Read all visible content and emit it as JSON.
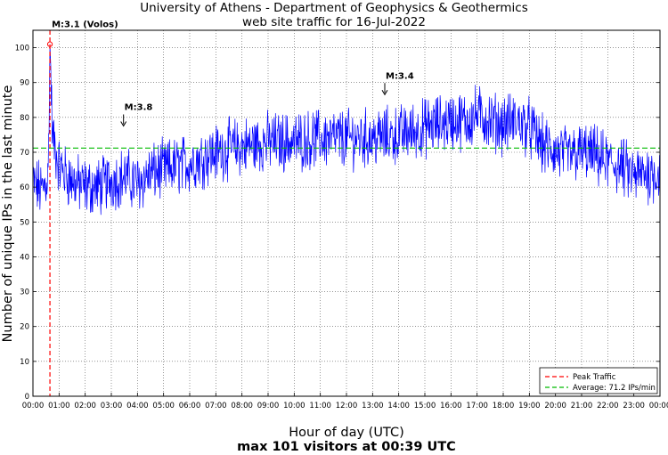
{
  "chart_data": {
    "type": "line",
    "title": "University of Athens - Department of Geophysics & Geothermics",
    "subtitle": "web site traffic for 16-Jul-2022",
    "xlabel": "Hour of day (UTC)",
    "ylabel": "Number of unique IPs in the last minute",
    "footer": "max 101 visitors at 00:39 UTC",
    "xlim_minutes": [
      0,
      1440
    ],
    "ylim": [
      0,
      105
    ],
    "grid": true,
    "x_tick_labels": [
      "00:00",
      "01:00",
      "02:00",
      "03:00",
      "04:00",
      "05:00",
      "06:00",
      "07:00",
      "08:00",
      "09:00",
      "10:00",
      "11:00",
      "12:00",
      "13:00",
      "14:00",
      "15:00",
      "16:00",
      "17:00",
      "18:00",
      "19:00",
      "20:00",
      "21:00",
      "22:00",
      "23:00",
      "00:00"
    ],
    "y_ticks": [
      0,
      10,
      20,
      30,
      40,
      50,
      60,
      70,
      80,
      90,
      100
    ],
    "series": [
      {
        "name": "traffic",
        "color": "#0000ff",
        "x_minutes": [
          0,
          20,
          35,
          39,
          45,
          60,
          80,
          100,
          120,
          150,
          180,
          210,
          240,
          270,
          300,
          330,
          360,
          400,
          450,
          500,
          540,
          600,
          660,
          720,
          780,
          840,
          900,
          930,
          960,
          1000,
          1020,
          1050,
          1080,
          1110,
          1140,
          1170,
          1200,
          1230,
          1260,
          1290,
          1320,
          1350,
          1380,
          1410,
          1439
        ],
        "values": [
          61,
          59,
          63,
          101,
          74,
          66,
          63,
          61,
          60,
          60,
          62,
          63,
          61,
          64,
          65,
          66,
          67,
          69,
          71,
          72,
          73,
          73,
          74,
          74,
          74,
          75,
          77,
          78,
          79,
          79,
          81,
          79,
          78,
          79,
          77,
          72,
          70,
          69,
          70,
          69,
          67,
          66,
          63,
          64,
          64
        ]
      }
    ],
    "peak": {
      "time_minutes": 39,
      "value": 101,
      "label": "Peak Traffic",
      "color": "#ff0000"
    },
    "average": {
      "value": 71.2,
      "label": "Average: 71.2 IPs/min",
      "color": "#00bb00"
    },
    "annotations": [
      {
        "text": "M:3.1 (Volos)",
        "time_minutes": 39,
        "value": 101
      },
      {
        "text": "M:3.8",
        "time_minutes": 210,
        "value": 76
      },
      {
        "text": "M:3.4",
        "time_minutes": 810,
        "value": 85
      }
    ],
    "legend_position": "bottom-right"
  }
}
